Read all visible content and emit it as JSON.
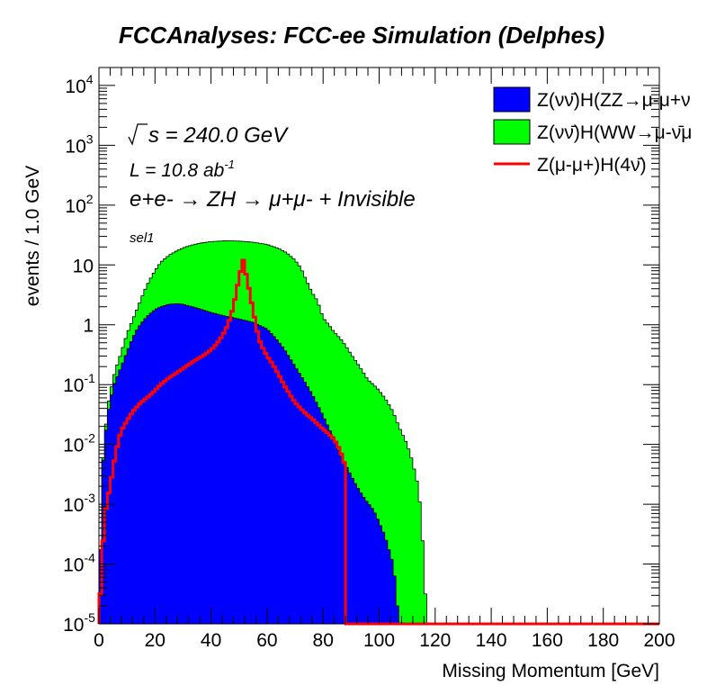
{
  "chart_data": {
    "type": "area",
    "title": "FCCAnalyses: FCC-ee Simulation (Delphes)",
    "xlabel": "Missing Momentum [GeV]",
    "ylabel": "events / 1.0 GeV",
    "xlim": [
      0,
      200
    ],
    "ylim": [
      1e-05,
      20000
    ],
    "yscale": "log",
    "grid": false,
    "legend_position": "top-right",
    "x_ticks": [
      "0",
      "20",
      "40",
      "60",
      "80",
      "100",
      "120",
      "140",
      "160",
      "180",
      "200"
    ],
    "y_ticks": [
      {
        "value": 1e-05,
        "base": "10",
        "exp": "-5"
      },
      {
        "value": 0.0001,
        "base": "10",
        "exp": "-4"
      },
      {
        "value": 0.001,
        "base": "10",
        "exp": "-3"
      },
      {
        "value": 0.01,
        "base": "10",
        "exp": "-2"
      },
      {
        "value": 0.1,
        "base": "10",
        "exp": "-1"
      },
      {
        "value": 1,
        "base": "1",
        "exp": ""
      },
      {
        "value": 10,
        "base": "10",
        "exp": ""
      },
      {
        "value": 100,
        "base": "10",
        "exp": "2"
      },
      {
        "value": 1000,
        "base": "10",
        "exp": "3"
      },
      {
        "value": 10000,
        "base": "10",
        "exp": "4"
      }
    ],
    "annotations": {
      "sqrt_s": "s = 240.0 GeV",
      "lumi": "L = 10.8 ab",
      "lumi_exp": "-1",
      "process": "e+e- → ZH → μ+μ- + Invisible",
      "selection": "sel1"
    },
    "series": [
      {
        "name": "Z(νν̄)H(ZZ→μ-μ+ν",
        "style": "stacked-fill",
        "color": "#0000ff",
        "points": [
          [
            0,
            1e-05
          ],
          [
            1,
            0.003
          ],
          [
            2,
            0.01
          ],
          [
            3,
            0.03
          ],
          [
            4,
            0.05
          ],
          [
            5,
            0.09
          ],
          [
            6,
            0.12
          ],
          [
            8,
            0.2
          ],
          [
            10,
            0.35
          ],
          [
            12,
            0.6
          ],
          [
            14,
            0.9
          ],
          [
            16,
            1.2
          ],
          [
            18,
            1.5
          ],
          [
            20,
            1.8
          ],
          [
            22,
            2.0
          ],
          [
            25,
            2.2
          ],
          [
            28,
            2.25
          ],
          [
            30,
            2.2
          ],
          [
            35,
            1.9
          ],
          [
            40,
            1.6
          ],
          [
            45,
            1.4
          ],
          [
            50,
            1.25
          ],
          [
            55,
            1.1
          ],
          [
            60,
            0.85
          ],
          [
            63,
            0.6
          ],
          [
            66,
            0.4
          ],
          [
            70,
            0.2
          ],
          [
            73,
            0.12
          ],
          [
            76,
            0.07
          ],
          [
            80,
            0.03
          ],
          [
            84,
            0.012
          ],
          [
            86,
            0.007
          ],
          [
            90,
            0.003
          ],
          [
            92,
            0.002
          ],
          [
            95,
            0.0012
          ],
          [
            98,
            0.0008
          ],
          [
            100,
            0.0005
          ],
          [
            102,
            0.0003
          ],
          [
            105,
            0.0001
          ],
          [
            106,
            4e-05
          ],
          [
            107,
            1e-05
          ]
        ]
      },
      {
        "name": "Z(νν̄)H(WW→μ-ν̄μ",
        "style": "stacked-fill",
        "color": "#00ff00",
        "points": [
          [
            0,
            1e-05
          ],
          [
            1,
            0.003
          ],
          [
            2,
            0.012
          ],
          [
            3,
            0.04
          ],
          [
            4,
            0.07
          ],
          [
            5,
            0.12
          ],
          [
            6,
            0.18
          ],
          [
            8,
            0.35
          ],
          [
            10,
            0.7
          ],
          [
            12,
            1.2
          ],
          [
            14,
            2.0
          ],
          [
            16,
            3.5
          ],
          [
            18,
            5.5
          ],
          [
            20,
            8
          ],
          [
            22,
            11
          ],
          [
            25,
            14.5
          ],
          [
            28,
            17.5
          ],
          [
            31,
            20
          ],
          [
            34,
            22
          ],
          [
            37,
            23.5
          ],
          [
            40,
            24.5
          ],
          [
            43,
            25
          ],
          [
            46,
            25.5
          ],
          [
            50,
            25
          ],
          [
            55,
            24
          ],
          [
            60,
            22
          ],
          [
            64,
            19
          ],
          [
            67,
            16
          ],
          [
            70,
            12
          ],
          [
            72,
            9
          ],
          [
            74,
            5.5
          ],
          [
            76,
            3.5
          ],
          [
            78,
            2.5
          ],
          [
            80,
            1.3
          ],
          [
            82,
            1.0
          ],
          [
            84,
            0.75
          ],
          [
            86,
            0.6
          ],
          [
            88,
            0.45
          ],
          [
            90,
            0.32
          ],
          [
            93,
            0.2
          ],
          [
            96,
            0.12
          ],
          [
            99,
            0.09
          ],
          [
            102,
            0.06
          ],
          [
            105,
            0.035
          ],
          [
            107,
            0.02
          ],
          [
            110,
            0.01
          ],
          [
            112,
            0.005
          ],
          [
            113,
            0.003
          ],
          [
            114,
            0.002
          ],
          [
            115,
            0.0006
          ],
          [
            116,
            0.0001
          ],
          [
            117,
            1e-05
          ]
        ]
      },
      {
        "name": "Z(μ-μ+)H(4ν̄)",
        "style": "line",
        "color": "#ff0000",
        "points": [
          [
            0,
            1e-05
          ],
          [
            1,
            0.0001
          ],
          [
            2,
            0.0006
          ],
          [
            3,
            0.0012
          ],
          [
            4,
            0.002
          ],
          [
            5,
            0.004
          ],
          [
            6,
            0.007
          ],
          [
            7,
            0.012
          ],
          [
            8,
            0.017
          ],
          [
            10,
            0.025
          ],
          [
            12,
            0.035
          ],
          [
            14,
            0.045
          ],
          [
            16,
            0.055
          ],
          [
            18,
            0.065
          ],
          [
            20,
            0.08
          ],
          [
            22,
            0.1
          ],
          [
            25,
            0.13
          ],
          [
            28,
            0.16
          ],
          [
            31,
            0.2
          ],
          [
            34,
            0.25
          ],
          [
            37,
            0.3
          ],
          [
            40,
            0.38
          ],
          [
            42,
            0.48
          ],
          [
            44,
            0.65
          ],
          [
            46,
            1.0
          ],
          [
            48,
            2.0
          ],
          [
            49,
            3.5
          ],
          [
            50,
            6.0
          ],
          [
            51,
            10
          ],
          [
            51.5,
            12
          ],
          [
            52,
            9
          ],
          [
            53,
            5.5
          ],
          [
            54,
            3.0
          ],
          [
            55,
            1.8
          ],
          [
            56,
            1.0
          ],
          [
            57,
            0.6
          ],
          [
            58,
            0.45
          ],
          [
            60,
            0.3
          ],
          [
            62,
            0.22
          ],
          [
            64,
            0.15
          ],
          [
            66,
            0.1
          ],
          [
            68,
            0.07
          ],
          [
            70,
            0.05
          ],
          [
            72,
            0.04
          ],
          [
            74,
            0.032
          ],
          [
            76,
            0.027
          ],
          [
            78,
            0.022
          ],
          [
            80,
            0.018
          ],
          [
            82,
            0.015
          ],
          [
            84,
            0.012
          ],
          [
            85,
            0.01
          ],
          [
            86,
            0.008
          ],
          [
            87,
            0.006
          ],
          [
            87.5,
            0.005
          ],
          [
            88,
            1e-05
          ],
          [
            200,
            1e-05
          ]
        ]
      }
    ]
  }
}
